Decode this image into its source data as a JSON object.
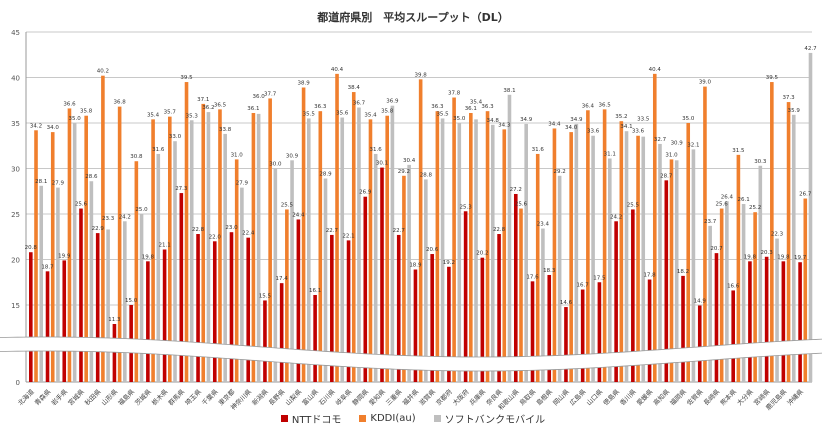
{
  "chart_data": {
    "type": "bar",
    "title": "都道府県別　平均スループット（DL）",
    "xlabel": "",
    "ylabel": "",
    "ylim": [
      0,
      45
    ],
    "axis_break": [
      0,
      15
    ],
    "yticks": [
      "0",
      "15",
      "20",
      "25",
      "30",
      "35",
      "40",
      "45"
    ],
    "grid": true,
    "legend_position": "bottom",
    "categories": [
      "北海道",
      "青森県",
      "岩手県",
      "宮城県",
      "秋田県",
      "山形県",
      "福島県",
      "茨城県",
      "栃木県",
      "群馬県",
      "埼玉県",
      "千葉県",
      "東京都",
      "神奈川県",
      "新潟県",
      "長野県",
      "山梨県",
      "富山県",
      "石川県",
      "岐阜県",
      "静岡県",
      "愛知県",
      "三重県",
      "福井県",
      "滋賀県",
      "京都府",
      "大阪府",
      "兵庫県",
      "奈良県",
      "和歌山県",
      "鳥取県",
      "島根県",
      "岡山県",
      "広島県",
      "山口県",
      "徳島県",
      "香川県",
      "愛媛県",
      "高知県",
      "福岡県",
      "佐賀県",
      "長崎県",
      "熊本県",
      "大分県",
      "宮崎県",
      "鹿児島県",
      "沖縄県"
    ],
    "series": [
      {
        "name": "NTTドコモ",
        "color": "#c00000",
        "values": [
          20.8,
          18.7,
          19.9,
          25.6,
          22.9,
          11.3,
          15.0,
          19.8,
          21.1,
          27.3,
          22.8,
          22.0,
          23.0,
          22.4,
          15.5,
          17.4,
          24.4,
          16.1,
          22.7,
          22.1,
          26.9,
          30.1,
          22.7,
          18.9,
          20.6,
          19.2,
          25.3,
          20.2,
          22.8,
          27.2,
          17.6,
          18.3,
          14.6,
          16.7,
          17.5,
          24.2,
          25.5,
          17.8,
          28.7,
          18.2,
          14.9,
          20.7,
          16.6,
          19.8,
          20.3,
          19.8,
          19.7
        ]
      },
      {
        "name": "KDDI(au)",
        "color": "#f07f2d",
        "values": [
          34.2,
          34.0,
          36.6,
          35.8,
          40.2,
          36.8,
          30.8,
          35.4,
          35.7,
          39.5,
          37.1,
          36.5,
          31.0,
          36.1,
          37.7,
          25.5,
          38.9,
          36.3,
          40.4,
          38.4,
          35.4,
          35.8,
          29.2,
          39.8,
          36.3,
          37.8,
          36.1,
          36.3,
          34.3,
          25.6,
          31.6,
          34.4,
          34.0,
          36.4,
          36.5,
          35.2,
          33.6,
          40.4,
          31.0,
          35.0,
          39.0,
          25.6,
          31.5,
          25.2,
          39.5,
          37.3,
          26.7
        ]
      },
      {
        "name": "ソフトバンクモバイル",
        "color": "#bfbfbf",
        "values": [
          28.1,
          27.9,
          35.0,
          28.6,
          23.3,
          24.2,
          25.0,
          31.6,
          33.0,
          35.3,
          36.2,
          33.8,
          27.9,
          36.0,
          30.0,
          30.9,
          35.5,
          28.9,
          35.6,
          36.7,
          31.6,
          36.9,
          30.4,
          28.8,
          35.5,
          35.0,
          35.4,
          34.8,
          38.1,
          34.9,
          23.4,
          29.2,
          34.9,
          33.6,
          31.1,
          34.1,
          33.5,
          32.7,
          30.9,
          32.1,
          23.7,
          26.4,
          26.1,
          30.3,
          22.3,
          35.9,
          42.7
        ]
      }
    ]
  }
}
